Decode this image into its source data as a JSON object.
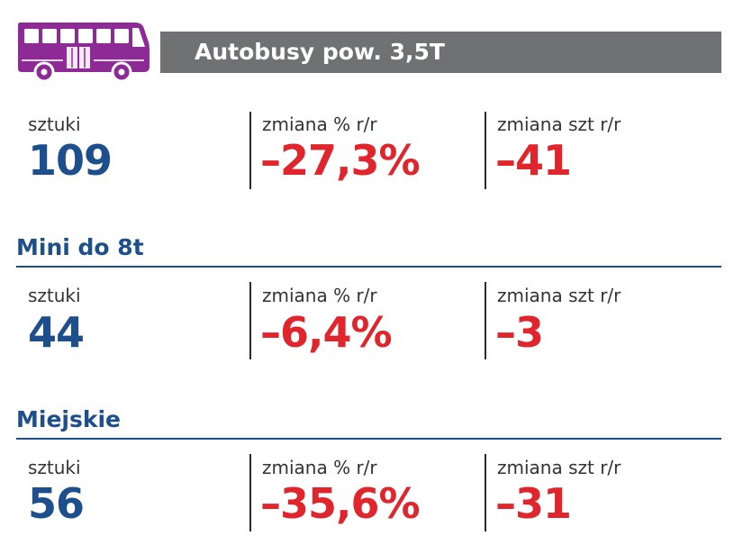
{
  "header": {
    "title": "Autobusy pow. 3,5T",
    "icon": "bus-icon"
  },
  "colors": {
    "header_bar": "#6f7173",
    "icon": "#8e2a96",
    "heading_blue": "#1e4f8d",
    "negative_red": "#e0252d"
  },
  "sections": [
    {
      "title": "",
      "stats": [
        {
          "label": "sztuki",
          "value": "109"
        },
        {
          "label": "zmiana % r/r",
          "value": "–27,3%"
        },
        {
          "label": "zmiana szt r/r",
          "value": "–41"
        }
      ]
    },
    {
      "title": "Mini do 8t",
      "stats": [
        {
          "label": "sztuki",
          "value": "44"
        },
        {
          "label": "zmiana % r/r",
          "value": "–6,4%"
        },
        {
          "label": "zmiana szt r/r",
          "value": "–3"
        }
      ]
    },
    {
      "title": "Miejskie",
      "stats": [
        {
          "label": "sztuki",
          "value": "56"
        },
        {
          "label": "zmiana % r/r",
          "value": "–35,6%"
        },
        {
          "label": "zmiana szt r/r",
          "value": "–31"
        }
      ]
    }
  ]
}
